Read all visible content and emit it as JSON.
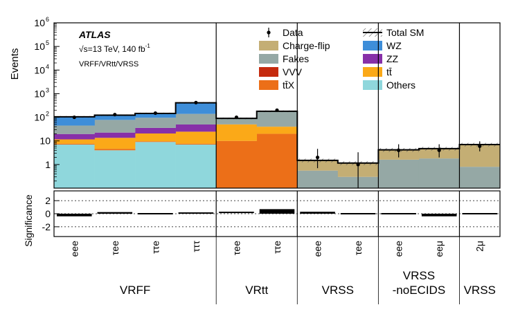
{
  "chart_data": {
    "type": "bar",
    "stacked": true,
    "ylabel": "Events",
    "yscale": "log",
    "ylim": [
      0.1,
      1000000
    ],
    "y_ticks": [
      {
        "value": 1,
        "label": "1"
      },
      {
        "value": 10,
        "label": "10"
      },
      {
        "value": 100,
        "label": "10",
        "sup": "2"
      },
      {
        "value": 1000,
        "label": "10",
        "sup": "3"
      },
      {
        "value": 10000,
        "label": "10",
        "sup": "4"
      },
      {
        "value": 100000,
        "label": "10",
        "sup": "5"
      },
      {
        "value": 1000000,
        "label": "10",
        "sup": "6"
      }
    ],
    "annotations": {
      "experiment": "ATLAS",
      "energy_prefix": "√s=13 TeV, 140 fb",
      "energy_sup": "-1",
      "regions": "VRFF/VRtt/VRSS"
    },
    "categories": [
      "eee",
      "τee",
      "ττe",
      "τττ",
      "τee",
      "ττe",
      "eee",
      "τee",
      "eee",
      "eeμ",
      "2μ"
    ],
    "groups": [
      {
        "label": "VRFF",
        "span": [
          0,
          3
        ]
      },
      {
        "label": "VRtt",
        "span": [
          4,
          5
        ]
      },
      {
        "label": "VRSS",
        "span": [
          6,
          7
        ]
      },
      {
        "label": "VRSS",
        "label2": "-noECIDS",
        "span": [
          8,
          9
        ]
      },
      {
        "label": "VRSS",
        "span": [
          10,
          10
        ]
      }
    ],
    "series": [
      {
        "name": "Others",
        "color": "#8fd7dc",
        "values": [
          7,
          4,
          9,
          7,
          0,
          0,
          0,
          0,
          0,
          0,
          0
        ]
      },
      {
        "name": "tt̄X",
        "color": "#ec6f18",
        "values": [
          0.5,
          0.4,
          0.5,
          0.5,
          10,
          20,
          0,
          0,
          0,
          0,
          0
        ]
      },
      {
        "name": "VVV",
        "color": "#c52a0e",
        "values": [
          0.1,
          0.1,
          0.1,
          0.1,
          0,
          0,
          0,
          0,
          0,
          0,
          0
        ]
      },
      {
        "name": "tt̄",
        "color": "#fba918",
        "values": [
          4,
          9,
          11,
          17,
          40,
          20,
          0,
          0,
          0,
          0,
          0
        ]
      },
      {
        "name": "ZZ",
        "color": "#8730a8",
        "values": [
          8,
          9,
          15,
          25,
          0,
          0,
          0,
          0,
          0,
          0,
          0
        ]
      },
      {
        "name": "Fakes",
        "color": "#95a8a5",
        "values": [
          25,
          55,
          60,
          90,
          40,
          140,
          0.55,
          0.3,
          1.6,
          1.8,
          0.8
        ]
      },
      {
        "name": "Charge-flip",
        "color": "#c4ae74",
        "values": [
          0,
          0,
          0,
          0,
          0,
          0,
          0.95,
          0.85,
          2.6,
          2.9,
          6.2
        ]
      },
      {
        "name": "WZ",
        "color": "#3e8ed9",
        "values": [
          60,
          45,
          50,
          270,
          0,
          0,
          0,
          0,
          0,
          0,
          0
        ]
      }
    ],
    "data_points": {
      "name": "Data",
      "values": [
        100,
        130,
        150,
        420,
        100,
        200,
        2,
        1,
        4,
        4,
        6
      ],
      "err_low": [
        10,
        11,
        12,
        20,
        10,
        14,
        1.3,
        0.9,
        2,
        2,
        2.4
      ],
      "err_high": [
        10,
        11,
        12,
        20,
        10,
        14,
        2.6,
        2.3,
        3.2,
        3.2,
        3.6
      ]
    },
    "total_sm": {
      "name": "Total SM"
    },
    "legend": [
      {
        "name": "Data",
        "kind": "marker"
      },
      {
        "name": "Total SM",
        "kind": "hatch"
      },
      {
        "name": "Charge-flip",
        "kind": "box",
        "color": "#c4ae74"
      },
      {
        "name": "WZ",
        "kind": "box",
        "color": "#3e8ed9"
      },
      {
        "name": "Fakes",
        "kind": "box",
        "color": "#95a8a5"
      },
      {
        "name": "ZZ",
        "kind": "box",
        "color": "#8730a8"
      },
      {
        "name": "VVV",
        "kind": "box",
        "color": "#c52a0e"
      },
      {
        "name": "tt̄",
        "kind": "box",
        "color": "#fba918"
      },
      {
        "name": "tt̄X",
        "kind": "box",
        "color": "#ec6f18"
      },
      {
        "name": "Others",
        "kind": "box",
        "color": "#8fd7dc"
      }
    ],
    "legend_placement": "top-right",
    "significance": {
      "ylabel": "Significance",
      "ylim": [
        -3.5,
        3.5
      ],
      "ticks": [
        -2,
        0,
        2
      ],
      "grid_values": [
        -2,
        0,
        2
      ],
      "values": [
        -0.4,
        0.25,
        -0.05,
        0.1,
        0.2,
        0.7,
        0.3,
        -0.1,
        -0.05,
        -0.4,
        -0.2
      ]
    }
  }
}
